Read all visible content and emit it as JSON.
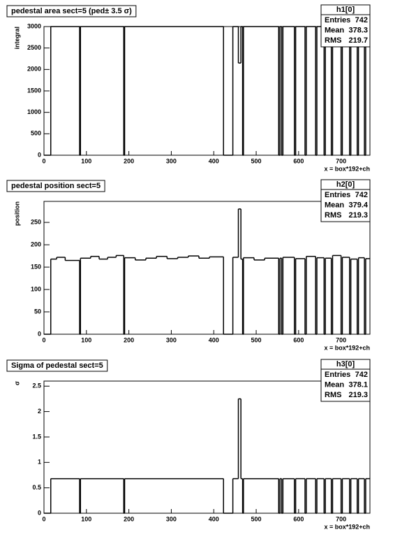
{
  "chart_data": [
    {
      "type": "histogram",
      "title": "pedestal area sect=5 (ped± 3.5 σ)",
      "xlabel": "x = box*192+ch",
      "ylabel": "integral",
      "color": "#000000",
      "bins": [
        0,
        16,
        84,
        86,
        188,
        190,
        423,
        445,
        458,
        464,
        468,
        470,
        553,
        556,
        560,
        563,
        590,
        593,
        615,
        618,
        640,
        643,
        660,
        663,
        677,
        680,
        700,
        703,
        720,
        723,
        738,
        741,
        755,
        758,
        768
      ],
      "values": [
        0,
        3000,
        0,
        3000,
        0,
        3000,
        0,
        3000,
        2150,
        3000,
        0,
        3000,
        0,
        3000,
        0,
        3000,
        0,
        3000,
        0,
        3000,
        0,
        3000,
        0,
        3000,
        0,
        3000,
        0,
        3000,
        0,
        3000,
        0,
        3000,
        0,
        3000
      ],
      "xlim": [
        0,
        768
      ],
      "xticks": [
        0,
        100,
        200,
        300,
        400,
        500,
        600,
        700
      ],
      "ylim": [
        0,
        3000
      ],
      "yticks": [
        0,
        500,
        1000,
        1500,
        2000,
        2500,
        3000
      ],
      "stats": {
        "title": "h1[0]",
        "rows": [
          [
            "Entries",
            742
          ],
          [
            "Mean",
            378.3
          ],
          [
            "RMS",
            219.7
          ]
        ]
      }
    },
    {
      "type": "histogram",
      "title": "pedestal position sect=5",
      "xlabel": "x = box*192+ch",
      "ylabel": "position",
      "color": "#000000",
      "bins": [
        0,
        16,
        30,
        50,
        84,
        86,
        110,
        130,
        150,
        170,
        188,
        190,
        215,
        240,
        265,
        290,
        315,
        340,
        365,
        390,
        423,
        445,
        458,
        464,
        468,
        470,
        495,
        520,
        553,
        556,
        560,
        563,
        590,
        593,
        615,
        618,
        640,
        643,
        660,
        663,
        677,
        680,
        700,
        703,
        720,
        723,
        738,
        741,
        755,
        758,
        768
      ],
      "values": [
        0,
        168,
        172,
        165,
        0,
        170,
        174,
        168,
        172,
        176,
        0,
        171,
        166,
        170,
        174,
        169,
        172,
        175,
        170,
        173,
        0,
        172,
        280,
        168,
        0,
        171,
        166,
        170,
        0,
        170,
        0,
        172,
        0,
        169,
        0,
        174,
        0,
        171,
        0,
        170,
        0,
        176,
        0,
        172,
        0,
        168,
        0,
        171,
        0,
        169
      ],
      "xlim": [
        0,
        768
      ],
      "xticks": [
        0,
        100,
        200,
        300,
        400,
        500,
        600,
        700
      ],
      "ylim": [
        0,
        297
      ],
      "yticks": [
        0,
        50,
        100,
        150,
        200,
        250
      ],
      "stats": {
        "title": "h2[0]",
        "rows": [
          [
            "Entries",
            742
          ],
          [
            "Mean",
            379.4
          ],
          [
            "RMS",
            219.3
          ]
        ]
      }
    },
    {
      "type": "histogram",
      "title": "Sigma of pedestal sect=5",
      "xlabel": "x = box*192+ch",
      "ylabel": "σ",
      "color": "#000000",
      "bins": [
        0,
        16,
        84,
        86,
        188,
        190,
        423,
        445,
        458,
        464,
        468,
        470,
        553,
        556,
        560,
        563,
        590,
        593,
        615,
        618,
        640,
        643,
        660,
        663,
        677,
        680,
        700,
        703,
        720,
        723,
        738,
        741,
        755,
        758,
        768
      ],
      "values": [
        0,
        0.68,
        0,
        0.68,
        0,
        0.68,
        0,
        0.68,
        2.25,
        0.68,
        0,
        0.68,
        0,
        0.68,
        0,
        0.68,
        0,
        0.68,
        0,
        0.68,
        0,
        0.68,
        0,
        0.68,
        0,
        0.68,
        0,
        0.68,
        0,
        0.68,
        0,
        0.68,
        0,
        0.68
      ],
      "xlim": [
        0,
        768
      ],
      "xticks": [
        0,
        100,
        200,
        300,
        400,
        500,
        600,
        700
      ],
      "ylim": [
        0,
        2.6
      ],
      "yticks": [
        0,
        0.5,
        1,
        1.5,
        2,
        2.5
      ],
      "stats": {
        "title": "h3[0]",
        "rows": [
          [
            "Entries",
            742
          ],
          [
            "Mean",
            378.1
          ],
          [
            "RMS",
            219.3
          ]
        ]
      }
    }
  ]
}
